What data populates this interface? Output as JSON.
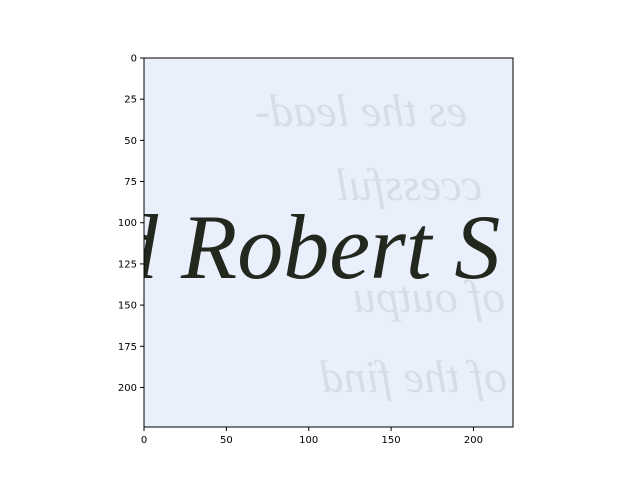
{
  "chart_data": {
    "type": "image",
    "image_text": "d Robert S",
    "bleed_through_text": [
      "es the lead-",
      "ccessful",
      "y of outpu",
      "of the find"
    ],
    "xlim": [
      0,
      224
    ],
    "ylim": [
      224,
      0
    ],
    "x_ticks": [
      0,
      50,
      100,
      150,
      200
    ],
    "y_ticks": [
      0,
      25,
      50,
      75,
      100,
      125,
      150,
      175,
      200
    ],
    "grid": false,
    "colors": {
      "paper": "#eaf0fb",
      "ink": "#23281f",
      "bleed_ink": "#c9ccd6",
      "axis": "#000000"
    }
  }
}
